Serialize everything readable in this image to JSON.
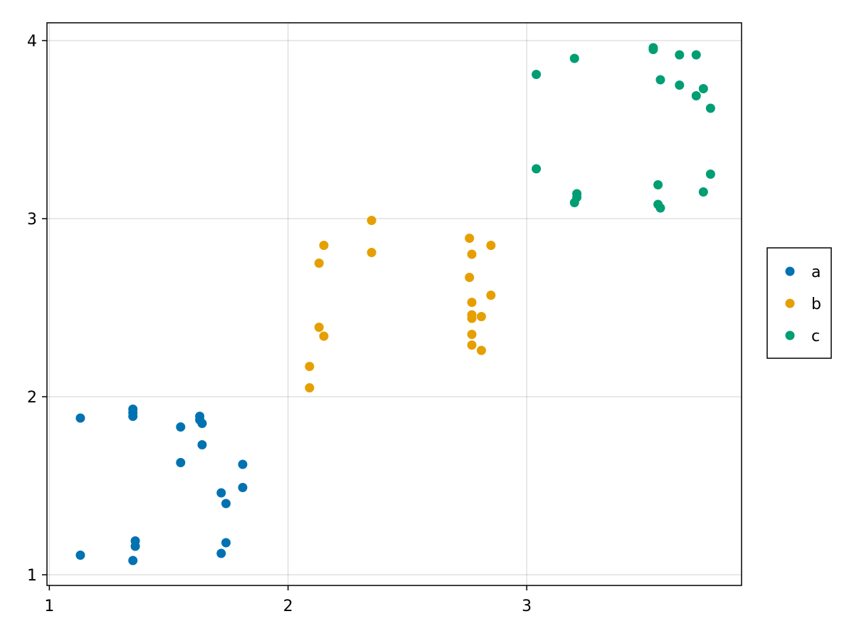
{
  "chart_data": {
    "type": "scatter",
    "title": "",
    "xlabel": "",
    "ylabel": "",
    "xlim": [
      0.99,
      3.9
    ],
    "ylim": [
      0.94,
      4.1
    ],
    "xticks": [
      1,
      2,
      3
    ],
    "yticks": [
      1,
      2,
      3,
      4
    ],
    "xtick_labels": [
      "1",
      "2",
      "3"
    ],
    "ytick_labels": [
      "1",
      "2",
      "3",
      "4"
    ],
    "grid": true,
    "legend_position": "right",
    "series": [
      {
        "name": "a",
        "color": "#0072b2",
        "points": [
          [
            1.13,
            1.88
          ],
          [
            1.13,
            1.11
          ],
          [
            1.35,
            1.93
          ],
          [
            1.35,
            1.91
          ],
          [
            1.35,
            1.89
          ],
          [
            1.35,
            1.08
          ],
          [
            1.36,
            1.19
          ],
          [
            1.36,
            1.16
          ],
          [
            1.55,
            1.83
          ],
          [
            1.55,
            1.63
          ],
          [
            1.63,
            1.89
          ],
          [
            1.63,
            1.87
          ],
          [
            1.64,
            1.85
          ],
          [
            1.64,
            1.73
          ],
          [
            1.72,
            1.46
          ],
          [
            1.72,
            1.12
          ],
          [
            1.74,
            1.4
          ],
          [
            1.74,
            1.18
          ],
          [
            1.81,
            1.62
          ],
          [
            1.81,
            1.49
          ]
        ]
      },
      {
        "name": "b",
        "color": "#e69f00",
        "points": [
          [
            2.09,
            2.17
          ],
          [
            2.09,
            2.05
          ],
          [
            2.13,
            2.75
          ],
          [
            2.13,
            2.39
          ],
          [
            2.15,
            2.85
          ],
          [
            2.15,
            2.34
          ],
          [
            2.35,
            2.99
          ],
          [
            2.35,
            2.81
          ],
          [
            2.76,
            2.89
          ],
          [
            2.76,
            2.67
          ],
          [
            2.77,
            2.8
          ],
          [
            2.77,
            2.53
          ],
          [
            2.77,
            2.46
          ],
          [
            2.77,
            2.44
          ],
          [
            2.77,
            2.35
          ],
          [
            2.77,
            2.29
          ],
          [
            2.81,
            2.45
          ],
          [
            2.81,
            2.26
          ],
          [
            2.85,
            2.85
          ],
          [
            2.85,
            2.57
          ]
        ]
      },
      {
        "name": "c",
        "color": "#009e73",
        "points": [
          [
            3.04,
            3.81
          ],
          [
            3.04,
            3.28
          ],
          [
            3.2,
            3.9
          ],
          [
            3.2,
            3.09
          ],
          [
            3.21,
            3.14
          ],
          [
            3.21,
            3.12
          ],
          [
            3.53,
            3.96
          ],
          [
            3.53,
            3.95
          ],
          [
            3.55,
            3.19
          ],
          [
            3.55,
            3.08
          ],
          [
            3.56,
            3.78
          ],
          [
            3.56,
            3.06
          ],
          [
            3.64,
            3.92
          ],
          [
            3.64,
            3.75
          ],
          [
            3.71,
            3.92
          ],
          [
            3.71,
            3.69
          ],
          [
            3.74,
            3.73
          ],
          [
            3.74,
            3.15
          ],
          [
            3.77,
            3.62
          ],
          [
            3.77,
            3.25
          ]
        ]
      }
    ]
  }
}
